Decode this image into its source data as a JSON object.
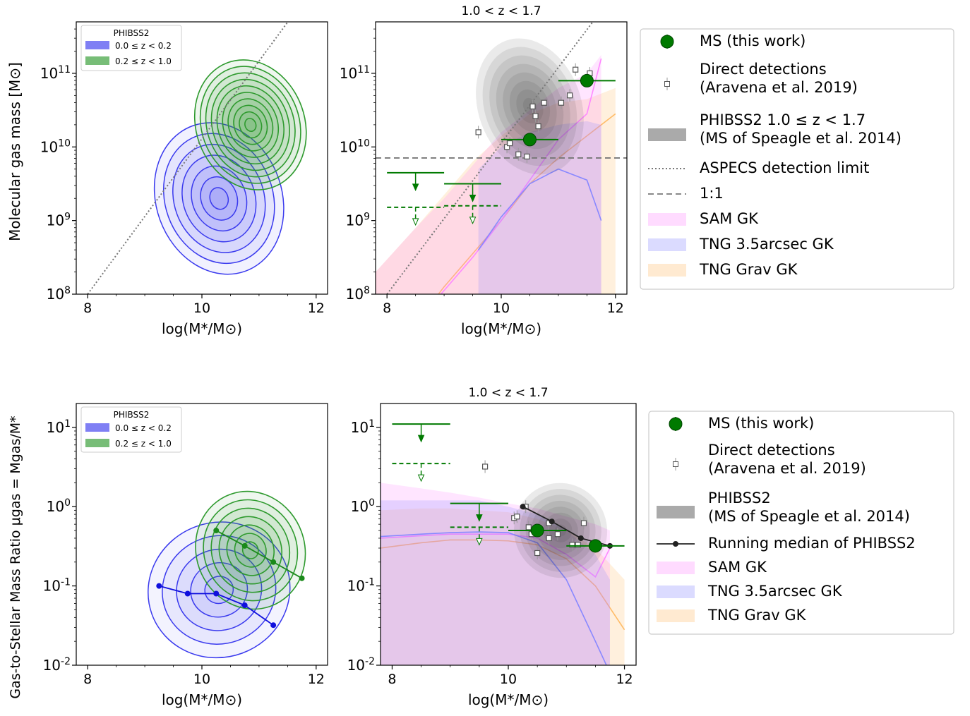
{
  "figure": {
    "top_ylabel": "Molecular gas mass [M⊙]",
    "bottom_ylabel": "Gas-to-Stellar Mass Ratio  μgas = Mgas/M*",
    "xlabel": "log(M*/M⊙)"
  },
  "colors": {
    "ms_green": "#007a00",
    "phibss_low_z": "#3a3aee",
    "phibss_high_z": "#2e9a2e",
    "direct_det": "#555555",
    "phibss_gray": "#9a9a9a",
    "sam_gk": "#ff88ff",
    "tng_35arcsec": "#8888ff",
    "tng_grav": "#ffbb66",
    "median_black": "#222222"
  },
  "chart_data": [
    {
      "id": "top-left",
      "type": "contour",
      "title": "",
      "xlabel": "log(M*/M⊙)",
      "ylabel": "Molecular gas mass [M⊙]",
      "xlim": [
        7.8,
        12.2
      ],
      "ylim": [
        100000000.0,
        500000000000.0
      ],
      "ylog": true,
      "xticks": [
        "8",
        "10",
        "12"
      ],
      "yticks": [
        "10^8",
        "10^9",
        "10^10",
        "10^11"
      ],
      "legend": {
        "title": "PHIBSS2",
        "location": "upper-left",
        "entries": [
          {
            "label": "0.0 ≤ z < 0.2",
            "color": "#3a3aee"
          },
          {
            "label": "0.2 ≤ z < 1.0",
            "color": "#2e9a2e"
          }
        ]
      },
      "contours": [
        {
          "name": "0.0 ≤ z < 0.2",
          "center": [
            10.3,
            9.3
          ],
          "radii": [
            1.1,
            1.05
          ],
          "levels": 7
        },
        {
          "name": "0.2 ≤ z < 1.0",
          "center": [
            10.85,
            10.3
          ],
          "radii": [
            0.95,
            0.9
          ],
          "levels": 10
        }
      ],
      "detection_limit_line": {
        "x": [
          8.0,
          11.6
        ],
        "log_y": [
          8.0,
          11.8
        ]
      }
    },
    {
      "id": "top-right",
      "type": "line",
      "title": "1.0 < z < 1.7",
      "xlabel": "log(M*/M⊙)",
      "ylabel": "",
      "xlim": [
        7.8,
        12.2
      ],
      "ylim": [
        100000000.0,
        500000000000.0
      ],
      "ylog": true,
      "xticks": [
        "8",
        "10",
        "12"
      ],
      "yticks": [
        "10^8",
        "10^9",
        "10^10",
        "10^11"
      ],
      "ms_points": [
        {
          "x": 10.5,
          "log_y": 10.1,
          "xerr": 0.5
        },
        {
          "x": 11.5,
          "log_y": 10.9,
          "xerr": 0.5
        }
      ],
      "upper_limits_solid": [
        {
          "x": 8.5,
          "log_y": 9.65,
          "xerr": 0.5
        },
        {
          "x": 9.5,
          "log_y": 9.5,
          "xerr": 0.5
        }
      ],
      "upper_limits_dashed": [
        {
          "x": 8.5,
          "log_y": 9.18,
          "xerr": 0.5
        },
        {
          "x": 9.5,
          "log_y": 9.2,
          "xerr": 0.5
        }
      ],
      "direct_detections": [
        {
          "x": 9.6,
          "log_y": 10.2
        },
        {
          "x": 10.1,
          "log_y": 10.0
        },
        {
          "x": 10.15,
          "log_y": 10.05
        },
        {
          "x": 10.3,
          "log_y": 9.9
        },
        {
          "x": 10.45,
          "log_y": 9.87
        },
        {
          "x": 10.55,
          "log_y": 10.55
        },
        {
          "x": 10.6,
          "log_y": 10.42
        },
        {
          "x": 10.65,
          "log_y": 10.28
        },
        {
          "x": 10.75,
          "log_y": 10.6
        },
        {
          "x": 11.05,
          "log_y": 10.6
        },
        {
          "x": 11.2,
          "log_y": 10.7
        },
        {
          "x": 11.3,
          "log_y": 11.05
        },
        {
          "x": 11.55,
          "log_y": 11.0
        }
      ],
      "detection_limit": {
        "x": [
          8.0,
          11.75
        ],
        "log_y": [
          8.0,
          11.85
        ]
      },
      "one_to_one": {
        "log_y": 9.85
      },
      "sam_gk": {
        "x": [
          7.8,
          8.5,
          9.0,
          9.5,
          10.0,
          10.5,
          11.0,
          11.5,
          11.75
        ],
        "median_log": [
          7.0,
          7.6,
          8.05,
          8.5,
          9.0,
          9.55,
          10.1,
          10.45,
          11.2
        ],
        "lo_log": [
          8.0,
          8.0,
          8.0,
          8.0,
          8.0,
          8.0,
          8.0,
          8.0,
          8.0
        ],
        "hi_log": [
          8.3,
          8.9,
          9.3,
          9.75,
          10.2,
          10.5,
          10.8,
          11.0,
          11.25
        ]
      },
      "tng_35arcsec": {
        "x": [
          9.6,
          10.0,
          10.5,
          11.0,
          11.5,
          11.75
        ],
        "median_log": [
          8.6,
          9.05,
          9.5,
          9.7,
          9.55,
          9.0
        ],
        "lo_log": [
          8.0,
          8.0,
          8.0,
          8.0,
          8.0,
          8.0
        ],
        "hi_log": [
          9.7,
          10.0,
          10.2,
          10.3,
          10.35,
          10.3
        ]
      },
      "tng_grav": {
        "x": [
          7.8,
          8.5,
          9.0,
          9.5,
          10.0,
          10.5,
          11.0,
          11.5,
          12.0
        ],
        "median_log": [
          7.0,
          7.6,
          8.1,
          8.55,
          9.0,
          9.5,
          9.85,
          10.15,
          10.45
        ],
        "lo_log": [
          8.0,
          8.0,
          8.0,
          8.0,
          8.0,
          8.0,
          8.0,
          8.0,
          8.0
        ],
        "hi_log": [
          8.3,
          8.9,
          9.35,
          9.8,
          10.15,
          10.45,
          10.6,
          10.65,
          10.8
        ]
      },
      "phibss_contour": {
        "center": [
          10.5,
          10.55
        ],
        "radii": [
          0.9,
          0.95
        ],
        "levels": 8
      }
    },
    {
      "id": "bottom-left",
      "type": "contour",
      "title": "",
      "xlabel": "log(M*/M⊙)",
      "ylabel": "Gas-to-Stellar Mass Ratio  μgas = Mgas/M*",
      "xlim": [
        7.8,
        12.2
      ],
      "ylim": [
        0.01,
        20
      ],
      "ylog": true,
      "xticks": [
        "8",
        "10",
        "12"
      ],
      "yticks": [
        "10^-2",
        "10^-1",
        "10^0",
        "10^1"
      ],
      "legend": {
        "title": "PHIBSS2",
        "location": "upper-left",
        "entries": [
          {
            "label": "0.0 ≤ z < 0.2",
            "color": "#3a3aee"
          },
          {
            "label": "0.2 ≤ z < 1.0",
            "color": "#2e9a2e"
          }
        ]
      },
      "contours": [
        {
          "name": "0.0 ≤ z < 0.2",
          "center": [
            10.3,
            -1.05
          ],
          "radii": [
            1.25,
            0.85
          ],
          "levels": 5
        },
        {
          "name": "0.2 ≤ z < 1.0",
          "center": [
            10.85,
            -0.55
          ],
          "radii": [
            0.95,
            0.75
          ],
          "levels": 7
        }
      ],
      "running_median_low_z": {
        "x": [
          9.25,
          9.75,
          10.25,
          10.75,
          11.25
        ],
        "y": [
          0.1,
          0.08,
          0.08,
          0.057,
          0.032
        ]
      },
      "running_median_high_z": {
        "x": [
          10.25,
          10.75,
          11.25,
          11.75
        ],
        "y": [
          0.5,
          0.32,
          0.2,
          0.125
        ]
      }
    },
    {
      "id": "bottom-right",
      "type": "line",
      "title": "1.0 < z < 1.7",
      "xlabel": "log(M*/M⊙)",
      "ylabel": "",
      "xlim": [
        7.8,
        12.2
      ],
      "ylim": [
        0.01,
        20
      ],
      "ylog": true,
      "xticks": [
        "8",
        "10",
        "12"
      ],
      "yticks": [
        "10^-2",
        "10^-1",
        "10^0",
        "10^1"
      ],
      "ms_points": [
        {
          "x": 10.5,
          "y": 0.5,
          "xerr": 0.5
        },
        {
          "x": 11.5,
          "y": 0.32,
          "xerr": 0.5
        }
      ],
      "upper_limits_solid": [
        {
          "x": 8.5,
          "y": 11,
          "xerr": 0.5
        },
        {
          "x": 9.5,
          "y": 1.1,
          "xerr": 0.5
        }
      ],
      "upper_limits_dashed": [
        {
          "x": 8.5,
          "y": 3.5,
          "xerr": 0.5
        },
        {
          "x": 9.5,
          "y": 0.55,
          "xerr": 0.5
        }
      ],
      "direct_detections": [
        {
          "x": 9.6,
          "y": 3.2
        },
        {
          "x": 10.1,
          "y": 0.72
        },
        {
          "x": 10.15,
          "y": 0.75
        },
        {
          "x": 10.3,
          "y": 1.0
        },
        {
          "x": 10.35,
          "y": 0.55
        },
        {
          "x": 10.4,
          "y": 0.45
        },
        {
          "x": 10.5,
          "y": 0.26
        },
        {
          "x": 10.7,
          "y": 0.4
        },
        {
          "x": 10.7,
          "y": 0.62
        },
        {
          "x": 10.85,
          "y": 0.45
        },
        {
          "x": 11.1,
          "y": 0.33
        },
        {
          "x": 11.2,
          "y": 0.33
        },
        {
          "x": 11.3,
          "y": 0.62
        }
      ],
      "running_median_phibss2": {
        "x": [
          10.25,
          10.75,
          11.25,
          11.75
        ],
        "y": [
          1.0,
          0.65,
          0.4,
          0.32
        ]
      },
      "sam_gk": {
        "x": [
          7.8,
          8.5,
          9.0,
          9.5,
          10.0,
          10.5,
          11.0,
          11.5,
          11.75
        ],
        "median": [
          0.4,
          0.43,
          0.45,
          0.45,
          0.45,
          0.4,
          0.25,
          0.13,
          0.3
        ],
        "lo": [
          0.01,
          0.01,
          0.01,
          0.01,
          0.01,
          0.01,
          0.01,
          0.01,
          0.01
        ],
        "hi": [
          2.0,
          1.7,
          1.5,
          1.3,
          1.1,
          0.95,
          0.75,
          0.6,
          0.5
        ]
      },
      "tng_35arcsec": {
        "x": [
          7.8,
          8.5,
          9.0,
          9.5,
          10.0,
          10.5,
          11.0,
          11.5,
          11.75
        ],
        "median": [
          0.42,
          0.45,
          0.47,
          0.48,
          0.47,
          0.35,
          0.12,
          0.02,
          0.008
        ],
        "lo": [
          0.01,
          0.01,
          0.01,
          0.01,
          0.01,
          0.01,
          0.01,
          0.01,
          0.01
        ],
        "hi": [
          1.2,
          1.2,
          1.2,
          1.2,
          1.0,
          0.8,
          0.5,
          0.25,
          0.12
        ]
      },
      "tng_grav": {
        "x": [
          7.8,
          8.5,
          9.0,
          9.5,
          10.0,
          10.5,
          11.0,
          11.5,
          12.0
        ],
        "median": [
          0.3,
          0.35,
          0.38,
          0.38,
          0.37,
          0.33,
          0.22,
          0.1,
          0.028
        ],
        "lo": [
          0.01,
          0.01,
          0.01,
          0.01,
          0.01,
          0.01,
          0.01,
          0.01,
          0.01
        ],
        "hi": [
          0.9,
          0.95,
          0.95,
          0.9,
          0.85,
          0.7,
          0.5,
          0.3,
          0.12
        ]
      },
      "phibss_contour": {
        "center": [
          10.9,
          -0.3
        ],
        "radii": [
          0.8,
          0.6
        ],
        "levels": 8
      }
    }
  ],
  "legend_top": [
    {
      "key": "ms",
      "label": "MS (this work)"
    },
    {
      "key": "direct",
      "label": "Direct detections",
      "label2": "(Aravena et al. 2019)"
    },
    {
      "key": "phibss",
      "label": "PHIBSS2 1.0 ≤ z < 1.7",
      "label2": "(MS of Speagle et al. 2014)"
    },
    {
      "key": "dotted",
      "label": "ASPECS detection limit"
    },
    {
      "key": "dashed",
      "label": "1:1"
    },
    {
      "key": "sam",
      "label": "SAM GK"
    },
    {
      "key": "tng35",
      "label": "TNG 3.5arcsec GK"
    },
    {
      "key": "tnggrav",
      "label": "TNG Grav GK"
    }
  ],
  "legend_bottom": [
    {
      "key": "ms",
      "label": "MS (this work)"
    },
    {
      "key": "direct",
      "label": "Direct detections",
      "label2": "(Aravena et al. 2019)"
    },
    {
      "key": "phibss",
      "label": "PHIBSS2",
      "label2": "(MS of Speagle et al. 2014)"
    },
    {
      "key": "median",
      "label": "Running median of PHIBSS2"
    },
    {
      "key": "sam",
      "label": "SAM GK"
    },
    {
      "key": "tng35",
      "label": "TNG 3.5arcsec GK"
    },
    {
      "key": "tnggrav",
      "label": "TNG Grav GK"
    }
  ]
}
